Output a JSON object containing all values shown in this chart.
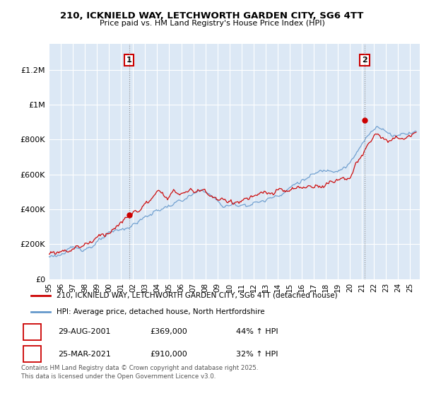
{
  "title1": "210, ICKNIELD WAY, LETCHWORTH GARDEN CITY, SG6 4TT",
  "title2": "Price paid vs. HM Land Registry's House Price Index (HPI)",
  "legend1": "210, ICKNIELD WAY, LETCHWORTH GARDEN CITY, SG6 4TT (detached house)",
  "legend2": "HPI: Average price, detached house, North Hertfordshire",
  "annotation1_date": "29-AUG-2001",
  "annotation1_price": "£369,000",
  "annotation1_hpi": "44% ↑ HPI",
  "annotation2_date": "25-MAR-2021",
  "annotation2_price": "£910,000",
  "annotation2_hpi": "32% ↑ HPI",
  "footnote": "Contains HM Land Registry data © Crown copyright and database right 2025.\nThis data is licensed under the Open Government Licence v3.0.",
  "sale1_year": 2001.66,
  "sale1_price": 369000,
  "sale2_year": 2021.23,
  "sale2_price": 910000,
  "red_color": "#cc0000",
  "blue_color": "#6699cc",
  "chart_bg": "#dce8f5",
  "grid_color": "#ffffff",
  "outer_bg": "#f0f0f0",
  "xlim_start": 1995,
  "xlim_end": 2025.8,
  "ylim_min": 0,
  "ylim_max": 1350000
}
